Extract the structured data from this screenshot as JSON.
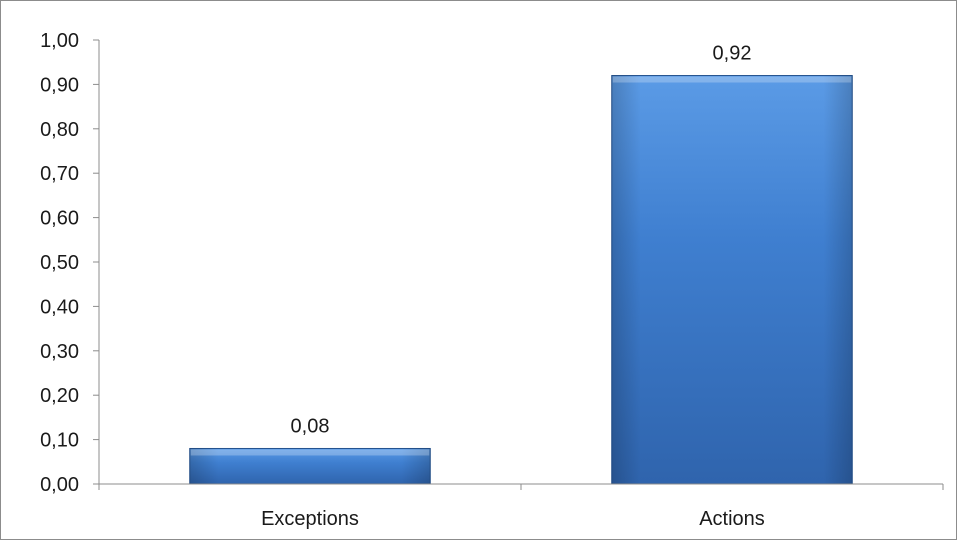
{
  "chart_data": {
    "type": "bar",
    "categories": [
      "Exceptions",
      "Actions"
    ],
    "values": [
      0.08,
      0.92
    ],
    "value_labels": [
      "0,08",
      "0,92"
    ],
    "title": "",
    "xlabel": "",
    "ylabel": "",
    "ylim": [
      0,
      1
    ],
    "yticks": [
      0,
      0.1,
      0.2,
      0.3,
      0.4,
      0.5,
      0.6,
      0.7,
      0.8,
      0.9,
      1.0
    ],
    "ytick_labels": [
      "0,00",
      "0,10",
      "0,20",
      "0,30",
      "0,40",
      "0,50",
      "0,60",
      "0,70",
      "0,80",
      "0,90",
      "1,00"
    ],
    "grid": false,
    "legend": "none",
    "colors": {
      "bar_top": "#5b9be6",
      "bar_mid": "#3f7fd0",
      "bar_bottom": "#2f64ad",
      "bar_edge": "#24528f",
      "axis": "#8c8c8c"
    }
  }
}
